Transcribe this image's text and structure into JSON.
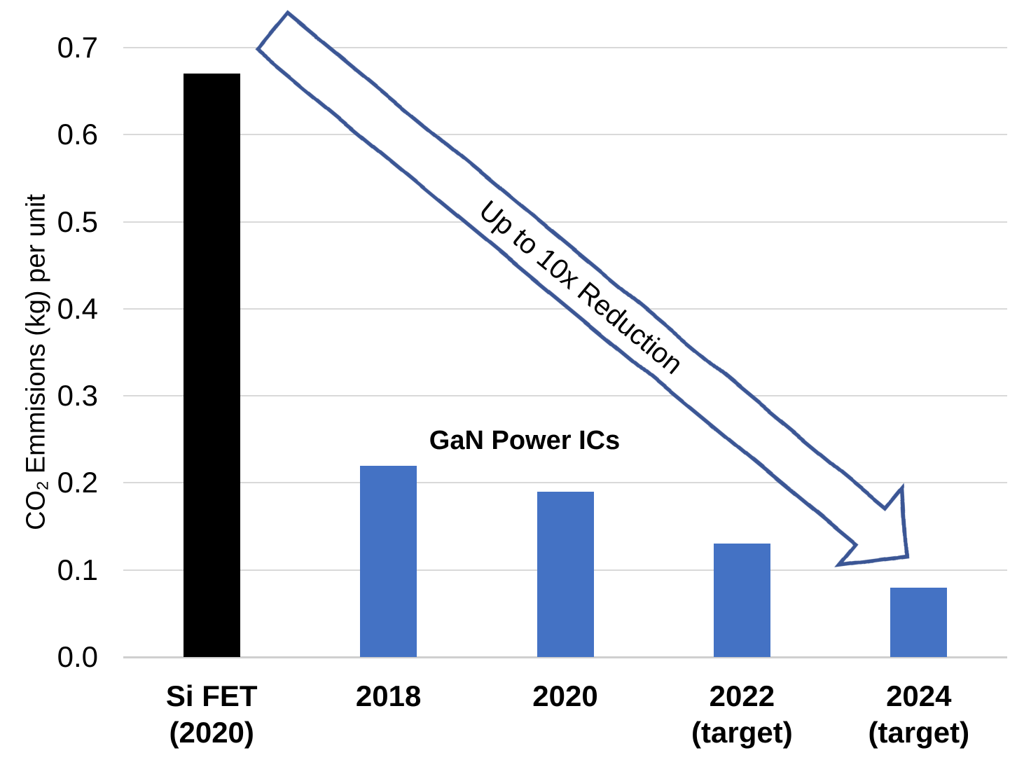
{
  "chart_data": {
    "type": "bar",
    "title": "",
    "ylabel": {
      "prefix": "CO",
      "subscript": "2",
      "rest": " Emmisions (kg) per unit"
    },
    "categories": [
      [
        "Si FET",
        "(2020)"
      ],
      [
        "2018"
      ],
      [
        "2020"
      ],
      [
        "2022",
        "(target)"
      ],
      [
        "2024",
        "(target)"
      ]
    ],
    "values": [
      0.67,
      0.22,
      0.19,
      0.13,
      0.08
    ],
    "bar_colors": [
      "#000000",
      "#4472C4",
      "#4472C4",
      "#4472C4",
      "#4472C4"
    ],
    "ylim": [
      0,
      0.7
    ],
    "yticks": [
      0,
      0.1,
      0.2,
      0.3,
      0.4,
      0.5,
      0.6,
      0.7
    ],
    "ytick_labels": [
      "0.0",
      "0.1",
      "0.2",
      "0.3",
      "0.4",
      "0.5",
      "0.6",
      "0.7"
    ],
    "grid": true,
    "legend": false,
    "annotations": {
      "series_label": "GaN Power ICs",
      "arrow_label": "Up to 10x Reduction"
    },
    "colors": {
      "si_fet_bar": "#000000",
      "gan_bar": "#4472C4",
      "arrow_outline": "#3A5795",
      "arrow_fill": "#FFFFFF",
      "gridline": "#D9D9D9",
      "text": "#000000"
    }
  }
}
